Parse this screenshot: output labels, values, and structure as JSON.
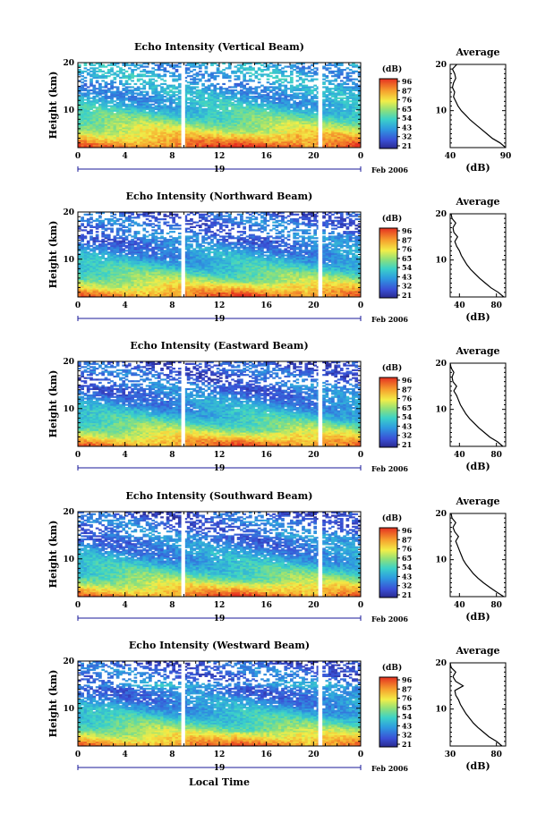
{
  "figure": {
    "xlabel": "Local Time",
    "date_label": "Feb 2006",
    "day_label": "19"
  },
  "chart_data": [
    {
      "type": "heatmap",
      "title": "Echo Intensity (Vertical Beam)",
      "ylabel": "Height (km)",
      "xlabel": "Local Time",
      "xlim": [
        0,
        24
      ],
      "ylim": [
        2,
        20
      ],
      "xticks": [
        "0",
        "4",
        "8",
        "12",
        "16",
        "20",
        "0"
      ],
      "yticks": [
        10,
        20
      ],
      "data_gaps": [
        [
          8.8,
          9.1
        ],
        [
          20.4,
          20.7
        ]
      ],
      "colorbar": {
        "label": "(dB)",
        "ticks": [
          "96",
          "87",
          "76",
          "65",
          "54",
          "43",
          "32",
          "21"
        ],
        "range": [
          21,
          96
        ]
      },
      "average_profile": {
        "title": "Average",
        "xlabel": "(dB)",
        "xlim": [
          40,
          90
        ],
        "xticks": [
          "40",
          "90"
        ],
        "yticks": [
          10,
          20
        ],
        "height_km": [
          2,
          3,
          4,
          5,
          6,
          7,
          8,
          9,
          10,
          11,
          12,
          13,
          14,
          15,
          16,
          17,
          18,
          19,
          20
        ],
        "db": [
          90,
          85,
          78,
          73,
          68,
          63,
          58,
          54,
          50,
          47,
          45,
          43,
          44,
          42,
          43,
          45,
          44,
          42,
          46
        ]
      }
    },
    {
      "type": "heatmap",
      "title": "Echo Intensity (Northward Beam)",
      "ylabel": "Height (km)",
      "xlabel": "Local Time",
      "xlim": [
        0,
        24
      ],
      "ylim": [
        2,
        20
      ],
      "xticks": [
        "0",
        "4",
        "8",
        "12",
        "16",
        "20",
        "0"
      ],
      "yticks": [
        10,
        20
      ],
      "data_gaps": [
        [
          8.8,
          9.1
        ],
        [
          20.4,
          20.7
        ]
      ],
      "colorbar": {
        "label": "(dB)",
        "ticks": [
          "96",
          "87",
          "76",
          "65",
          "54",
          "43",
          "32",
          "21"
        ],
        "range": [
          21,
          96
        ]
      },
      "average_profile": {
        "title": "Average",
        "xlabel": "(dB)",
        "xlim": [
          30,
          90
        ],
        "xticks": [
          "40",
          "80"
        ],
        "yticks": [
          10,
          20
        ],
        "height_km": [
          2,
          3,
          4,
          5,
          6,
          7,
          8,
          9,
          10,
          11,
          12,
          13,
          14,
          15,
          16,
          17,
          18,
          19,
          20
        ],
        "db": [
          88,
          82,
          74,
          68,
          62,
          57,
          52,
          48,
          45,
          42,
          40,
          37,
          35,
          38,
          34,
          33,
          36,
          32,
          31
        ]
      }
    },
    {
      "type": "heatmap",
      "title": "Echo Intensity (Eastward Beam)",
      "ylabel": "Height (km)",
      "xlabel": "Local Time",
      "xlim": [
        0,
        24
      ],
      "ylim": [
        2,
        20
      ],
      "xticks": [
        "0",
        "4",
        "8",
        "12",
        "16",
        "20",
        "0"
      ],
      "yticks": [
        10,
        20
      ],
      "data_gaps": [
        [
          8.8,
          9.1
        ],
        [
          20.4,
          20.7
        ]
      ],
      "colorbar": {
        "label": "(dB)",
        "ticks": [
          "96",
          "87",
          "76",
          "65",
          "54",
          "43",
          "32",
          "21"
        ],
        "range": [
          21,
          96
        ]
      },
      "average_profile": {
        "title": "Average",
        "xlabel": "(dB)",
        "xlim": [
          30,
          90
        ],
        "xticks": [
          "40",
          "80"
        ],
        "yticks": [
          10,
          20
        ],
        "height_km": [
          2,
          3,
          4,
          5,
          6,
          7,
          8,
          9,
          10,
          11,
          12,
          13,
          14,
          15,
          16,
          17,
          18,
          19,
          20
        ],
        "db": [
          87,
          81,
          73,
          67,
          61,
          56,
          51,
          47,
          44,
          41,
          39,
          37,
          34,
          37,
          33,
          32,
          34,
          31,
          30
        ]
      }
    },
    {
      "type": "heatmap",
      "title": "Echo Intensity (Southward Beam)",
      "ylabel": "Height (km)",
      "xlabel": "Local Time",
      "xlim": [
        0,
        24
      ],
      "ylim": [
        2,
        20
      ],
      "xticks": [
        "0",
        "4",
        "8",
        "12",
        "16",
        "20",
        "0"
      ],
      "yticks": [
        10,
        20
      ],
      "data_gaps": [
        [
          8.8,
          9.1
        ],
        [
          20.4,
          20.7
        ]
      ],
      "colorbar": {
        "label": "(dB)",
        "ticks": [
          "96",
          "87",
          "76",
          "65",
          "54",
          "43",
          "32",
          "21"
        ],
        "range": [
          21,
          96
        ]
      },
      "average_profile": {
        "title": "Average",
        "xlabel": "(dB)",
        "xlim": [
          30,
          90
        ],
        "xticks": [
          "40",
          "80"
        ],
        "yticks": [
          10,
          20
        ],
        "height_km": [
          2,
          3,
          4,
          5,
          6,
          7,
          8,
          9,
          10,
          11,
          12,
          13,
          14,
          15,
          16,
          17,
          18,
          19,
          20
        ],
        "db": [
          88,
          80,
          73,
          66,
          60,
          55,
          51,
          47,
          44,
          42,
          40,
          38,
          36,
          39,
          35,
          33,
          36,
          32,
          31
        ]
      }
    },
    {
      "type": "heatmap",
      "title": "Echo Intensity (Westward Beam)",
      "ylabel": "Height (km)",
      "xlabel": "Local Time",
      "xlim": [
        0,
        24
      ],
      "ylim": [
        2,
        20
      ],
      "xticks": [
        "0",
        "4",
        "8",
        "12",
        "16",
        "20",
        "0"
      ],
      "yticks": [
        10,
        20
      ],
      "data_gaps": [
        [
          8.8,
          9.1
        ],
        [
          20.4,
          20.7
        ]
      ],
      "colorbar": {
        "label": "(dB)",
        "ticks": [
          "96",
          "87",
          "76",
          "65",
          "54",
          "43",
          "32",
          "21"
        ],
        "range": [
          21,
          96
        ]
      },
      "average_profile": {
        "title": "Average",
        "xlabel": "(dB)",
        "xlim": [
          30,
          90
        ],
        "xticks": [
          "30",
          "80"
        ],
        "yticks": [
          10,
          20
        ],
        "height_km": [
          2,
          3,
          4,
          5,
          6,
          7,
          8,
          9,
          10,
          11,
          12,
          13,
          14,
          15,
          16,
          17,
          18,
          19,
          20
        ],
        "db": [
          86,
          80,
          72,
          66,
          60,
          55,
          51,
          47,
          44,
          41,
          39,
          36,
          35,
          44,
          36,
          33,
          36,
          31,
          30
        ]
      }
    }
  ]
}
